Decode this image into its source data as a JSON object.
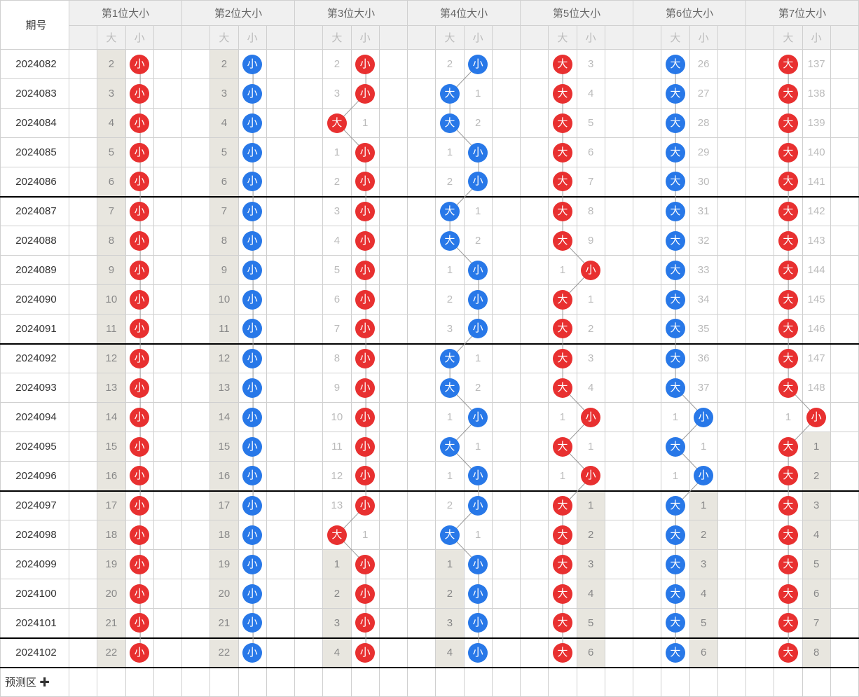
{
  "header": {
    "period_label": "期号",
    "positions": [
      "第1位大小",
      "第2位大小",
      "第3位大小",
      "第4位大小",
      "第5位大小",
      "第6位大小",
      "第7位大小"
    ],
    "sub": [
      "大",
      "小"
    ]
  },
  "predict_label": "预测区 ✚",
  "colors": {
    "red": "#e83030",
    "blue": "#2878e8",
    "hit_bg": "#e8e6df",
    "border": "#d0d0d0"
  },
  "rows": [
    {
      "period": "2024082",
      "cells": [
        {
          "da": 2,
          "xiao": "小",
          "hit": "xiao",
          "color": "red"
        },
        {
          "da": 2,
          "xiao": "小",
          "hit": "xiao",
          "color": "blue"
        },
        {
          "da": 2,
          "xiao": "小",
          "hit": "xiao",
          "color": "red"
        },
        {
          "da": 2,
          "xiao": "小",
          "hit": "xiao",
          "color": "blue"
        },
        {
          "da": "大",
          "xiao": 3,
          "hit": "da",
          "color": "red"
        },
        {
          "da": "大",
          "xiao": 26,
          "hit": "da",
          "color": "blue"
        },
        {
          "da": "大",
          "xiao": 137,
          "hit": "da",
          "color": "red"
        }
      ]
    },
    {
      "period": "2024083",
      "cells": [
        {
          "da": 3,
          "xiao": "小",
          "hit": "xiao",
          "color": "red"
        },
        {
          "da": 3,
          "xiao": "小",
          "hit": "xiao",
          "color": "blue"
        },
        {
          "da": 3,
          "xiao": "小",
          "hit": "xiao",
          "color": "red"
        },
        {
          "da": "大",
          "xiao": 1,
          "hit": "da",
          "color": "blue"
        },
        {
          "da": "大",
          "xiao": 4,
          "hit": "da",
          "color": "red"
        },
        {
          "da": "大",
          "xiao": 27,
          "hit": "da",
          "color": "blue"
        },
        {
          "da": "大",
          "xiao": 138,
          "hit": "da",
          "color": "red"
        }
      ]
    },
    {
      "period": "2024084",
      "cells": [
        {
          "da": 4,
          "xiao": "小",
          "hit": "xiao",
          "color": "red"
        },
        {
          "da": 4,
          "xiao": "小",
          "hit": "xiao",
          "color": "blue"
        },
        {
          "da": "大",
          "xiao": 1,
          "hit": "da",
          "color": "red"
        },
        {
          "da": "大",
          "xiao": 2,
          "hit": "da",
          "color": "blue"
        },
        {
          "da": "大",
          "xiao": 5,
          "hit": "da",
          "color": "red"
        },
        {
          "da": "大",
          "xiao": 28,
          "hit": "da",
          "color": "blue"
        },
        {
          "da": "大",
          "xiao": 139,
          "hit": "da",
          "color": "red"
        }
      ]
    },
    {
      "period": "2024085",
      "cells": [
        {
          "da": 5,
          "xiao": "小",
          "hit": "xiao",
          "color": "red"
        },
        {
          "da": 5,
          "xiao": "小",
          "hit": "xiao",
          "color": "blue"
        },
        {
          "da": 1,
          "xiao": "小",
          "hit": "xiao",
          "color": "red"
        },
        {
          "da": 1,
          "xiao": "小",
          "hit": "xiao",
          "color": "blue"
        },
        {
          "da": "大",
          "xiao": 6,
          "hit": "da",
          "color": "red"
        },
        {
          "da": "大",
          "xiao": 29,
          "hit": "da",
          "color": "blue"
        },
        {
          "da": "大",
          "xiao": 140,
          "hit": "da",
          "color": "red"
        }
      ]
    },
    {
      "period": "2024086",
      "cells": [
        {
          "da": 6,
          "xiao": "小",
          "hit": "xiao",
          "color": "red"
        },
        {
          "da": 6,
          "xiao": "小",
          "hit": "xiao",
          "color": "blue"
        },
        {
          "da": 2,
          "xiao": "小",
          "hit": "xiao",
          "color": "red"
        },
        {
          "da": 2,
          "xiao": "小",
          "hit": "xiao",
          "color": "blue"
        },
        {
          "da": "大",
          "xiao": 7,
          "hit": "da",
          "color": "red"
        },
        {
          "da": "大",
          "xiao": 30,
          "hit": "da",
          "color": "blue"
        },
        {
          "da": "大",
          "xiao": 141,
          "hit": "da",
          "color": "red"
        }
      ]
    },
    {
      "period": "2024087",
      "cells": [
        {
          "da": 7,
          "xiao": "小",
          "hit": "xiao",
          "color": "red"
        },
        {
          "da": 7,
          "xiao": "小",
          "hit": "xiao",
          "color": "blue"
        },
        {
          "da": 3,
          "xiao": "小",
          "hit": "xiao",
          "color": "red"
        },
        {
          "da": "大",
          "xiao": 1,
          "hit": "da",
          "color": "blue"
        },
        {
          "da": "大",
          "xiao": 8,
          "hit": "da",
          "color": "red"
        },
        {
          "da": "大",
          "xiao": 31,
          "hit": "da",
          "color": "blue"
        },
        {
          "da": "大",
          "xiao": 142,
          "hit": "da",
          "color": "red"
        }
      ]
    },
    {
      "period": "2024088",
      "cells": [
        {
          "da": 8,
          "xiao": "小",
          "hit": "xiao",
          "color": "red"
        },
        {
          "da": 8,
          "xiao": "小",
          "hit": "xiao",
          "color": "blue"
        },
        {
          "da": 4,
          "xiao": "小",
          "hit": "xiao",
          "color": "red"
        },
        {
          "da": "大",
          "xiao": 2,
          "hit": "da",
          "color": "blue"
        },
        {
          "da": "大",
          "xiao": 9,
          "hit": "da",
          "color": "red"
        },
        {
          "da": "大",
          "xiao": 32,
          "hit": "da",
          "color": "blue"
        },
        {
          "da": "大",
          "xiao": 143,
          "hit": "da",
          "color": "red"
        }
      ]
    },
    {
      "period": "2024089",
      "cells": [
        {
          "da": 9,
          "xiao": "小",
          "hit": "xiao",
          "color": "red"
        },
        {
          "da": 9,
          "xiao": "小",
          "hit": "xiao",
          "color": "blue"
        },
        {
          "da": 5,
          "xiao": "小",
          "hit": "xiao",
          "color": "red"
        },
        {
          "da": 1,
          "xiao": "小",
          "hit": "xiao",
          "color": "blue"
        },
        {
          "da": 1,
          "xiao": "小",
          "hit": "xiao",
          "color": "red"
        },
        {
          "da": "大",
          "xiao": 33,
          "hit": "da",
          "color": "blue"
        },
        {
          "da": "大",
          "xiao": 144,
          "hit": "da",
          "color": "red"
        }
      ]
    },
    {
      "period": "2024090",
      "cells": [
        {
          "da": 10,
          "xiao": "小",
          "hit": "xiao",
          "color": "red"
        },
        {
          "da": 10,
          "xiao": "小",
          "hit": "xiao",
          "color": "blue"
        },
        {
          "da": 6,
          "xiao": "小",
          "hit": "xiao",
          "color": "red"
        },
        {
          "da": 2,
          "xiao": "小",
          "hit": "xiao",
          "color": "blue"
        },
        {
          "da": "大",
          "xiao": 1,
          "hit": "da",
          "color": "red"
        },
        {
          "da": "大",
          "xiao": 34,
          "hit": "da",
          "color": "blue"
        },
        {
          "da": "大",
          "xiao": 145,
          "hit": "da",
          "color": "red"
        }
      ]
    },
    {
      "period": "2024091",
      "cells": [
        {
          "da": 11,
          "xiao": "小",
          "hit": "xiao",
          "color": "red"
        },
        {
          "da": 11,
          "xiao": "小",
          "hit": "xiao",
          "color": "blue"
        },
        {
          "da": 7,
          "xiao": "小",
          "hit": "xiao",
          "color": "red"
        },
        {
          "da": 3,
          "xiao": "小",
          "hit": "xiao",
          "color": "blue"
        },
        {
          "da": "大",
          "xiao": 2,
          "hit": "da",
          "color": "red"
        },
        {
          "da": "大",
          "xiao": 35,
          "hit": "da",
          "color": "blue"
        },
        {
          "da": "大",
          "xiao": 146,
          "hit": "da",
          "color": "red"
        }
      ]
    },
    {
      "period": "2024092",
      "cells": [
        {
          "da": 12,
          "xiao": "小",
          "hit": "xiao",
          "color": "red"
        },
        {
          "da": 12,
          "xiao": "小",
          "hit": "xiao",
          "color": "blue"
        },
        {
          "da": 8,
          "xiao": "小",
          "hit": "xiao",
          "color": "red"
        },
        {
          "da": "大",
          "xiao": 1,
          "hit": "da",
          "color": "blue"
        },
        {
          "da": "大",
          "xiao": 3,
          "hit": "da",
          "color": "red"
        },
        {
          "da": "大",
          "xiao": 36,
          "hit": "da",
          "color": "blue"
        },
        {
          "da": "大",
          "xiao": 147,
          "hit": "da",
          "color": "red"
        }
      ]
    },
    {
      "period": "2024093",
      "cells": [
        {
          "da": 13,
          "xiao": "小",
          "hit": "xiao",
          "color": "red"
        },
        {
          "da": 13,
          "xiao": "小",
          "hit": "xiao",
          "color": "blue"
        },
        {
          "da": 9,
          "xiao": "小",
          "hit": "xiao",
          "color": "red"
        },
        {
          "da": "大",
          "xiao": 2,
          "hit": "da",
          "color": "blue"
        },
        {
          "da": "大",
          "xiao": 4,
          "hit": "da",
          "color": "red"
        },
        {
          "da": "大",
          "xiao": 37,
          "hit": "da",
          "color": "blue"
        },
        {
          "da": "大",
          "xiao": 148,
          "hit": "da",
          "color": "red"
        }
      ]
    },
    {
      "period": "2024094",
      "cells": [
        {
          "da": 14,
          "xiao": "小",
          "hit": "xiao",
          "color": "red"
        },
        {
          "da": 14,
          "xiao": "小",
          "hit": "xiao",
          "color": "blue"
        },
        {
          "da": 10,
          "xiao": "小",
          "hit": "xiao",
          "color": "red"
        },
        {
          "da": 1,
          "xiao": "小",
          "hit": "xiao",
          "color": "blue"
        },
        {
          "da": 1,
          "xiao": "小",
          "hit": "xiao",
          "color": "red"
        },
        {
          "da": 1,
          "xiao": "小",
          "hit": "xiao",
          "color": "blue"
        },
        {
          "da": 1,
          "xiao": "小",
          "hit": "xiao",
          "color": "red"
        }
      ]
    },
    {
      "period": "2024095",
      "cells": [
        {
          "da": 15,
          "xiao": "小",
          "hit": "xiao",
          "color": "red"
        },
        {
          "da": 15,
          "xiao": "小",
          "hit": "xiao",
          "color": "blue"
        },
        {
          "da": 11,
          "xiao": "小",
          "hit": "xiao",
          "color": "red"
        },
        {
          "da": "大",
          "xiao": 1,
          "hit": "da",
          "color": "blue"
        },
        {
          "da": "大",
          "xiao": 1,
          "hit": "da",
          "color": "red"
        },
        {
          "da": "大",
          "xiao": 1,
          "hit": "da",
          "color": "blue"
        },
        {
          "da": "大",
          "xiao": 1,
          "hit": "da",
          "color": "red",
          "xiao_hit": true
        }
      ]
    },
    {
      "period": "2024096",
      "cells": [
        {
          "da": 16,
          "xiao": "小",
          "hit": "xiao",
          "color": "red"
        },
        {
          "da": 16,
          "xiao": "小",
          "hit": "xiao",
          "color": "blue"
        },
        {
          "da": 12,
          "xiao": "小",
          "hit": "xiao",
          "color": "red"
        },
        {
          "da": 1,
          "xiao": "小",
          "hit": "xiao",
          "color": "blue"
        },
        {
          "da": 1,
          "xiao": "小",
          "hit": "xiao",
          "color": "red"
        },
        {
          "da": 1,
          "xiao": "小",
          "hit": "xiao",
          "color": "blue"
        },
        {
          "da": "大",
          "xiao": 2,
          "hit": "da",
          "color": "red",
          "xiao_hit": true
        }
      ]
    },
    {
      "period": "2024097",
      "cells": [
        {
          "da": 17,
          "xiao": "小",
          "hit": "xiao",
          "color": "red"
        },
        {
          "da": 17,
          "xiao": "小",
          "hit": "xiao",
          "color": "blue"
        },
        {
          "da": 13,
          "xiao": "小",
          "hit": "xiao",
          "color": "red"
        },
        {
          "da": 2,
          "xiao": "小",
          "hit": "xiao",
          "color": "blue"
        },
        {
          "da": "大",
          "xiao": 1,
          "hit": "da",
          "color": "red",
          "xiao_hit": true
        },
        {
          "da": "大",
          "xiao": 1,
          "hit": "da",
          "color": "blue",
          "xiao_hit": true
        },
        {
          "da": "大",
          "xiao": 3,
          "hit": "da",
          "color": "red",
          "xiao_hit": true
        }
      ]
    },
    {
      "period": "2024098",
      "cells": [
        {
          "da": 18,
          "xiao": "小",
          "hit": "xiao",
          "color": "red"
        },
        {
          "da": 18,
          "xiao": "小",
          "hit": "xiao",
          "color": "blue"
        },
        {
          "da": "大",
          "xiao": 1,
          "hit": "da",
          "color": "red"
        },
        {
          "da": "大",
          "xiao": 1,
          "hit": "da",
          "color": "blue"
        },
        {
          "da": "大",
          "xiao": 2,
          "hit": "da",
          "color": "red",
          "xiao_hit": true
        },
        {
          "da": "大",
          "xiao": 2,
          "hit": "da",
          "color": "blue",
          "xiao_hit": true
        },
        {
          "da": "大",
          "xiao": 4,
          "hit": "da",
          "color": "red",
          "xiao_hit": true
        }
      ]
    },
    {
      "period": "2024099",
      "cells": [
        {
          "da": 19,
          "xiao": "小",
          "hit": "xiao",
          "color": "red"
        },
        {
          "da": 19,
          "xiao": "小",
          "hit": "xiao",
          "color": "blue"
        },
        {
          "da": 1,
          "xiao": "小",
          "hit": "xiao",
          "color": "red",
          "da_hit": true
        },
        {
          "da": 1,
          "xiao": "小",
          "hit": "xiao",
          "color": "blue",
          "da_hit": true
        },
        {
          "da": "大",
          "xiao": 3,
          "hit": "da",
          "color": "red",
          "xiao_hit": true
        },
        {
          "da": "大",
          "xiao": 3,
          "hit": "da",
          "color": "blue",
          "xiao_hit": true
        },
        {
          "da": "大",
          "xiao": 5,
          "hit": "da",
          "color": "red",
          "xiao_hit": true
        }
      ]
    },
    {
      "period": "2024100",
      "cells": [
        {
          "da": 20,
          "xiao": "小",
          "hit": "xiao",
          "color": "red"
        },
        {
          "da": 20,
          "xiao": "小",
          "hit": "xiao",
          "color": "blue"
        },
        {
          "da": 2,
          "xiao": "小",
          "hit": "xiao",
          "color": "red",
          "da_hit": true
        },
        {
          "da": 2,
          "xiao": "小",
          "hit": "xiao",
          "color": "blue",
          "da_hit": true
        },
        {
          "da": "大",
          "xiao": 4,
          "hit": "da",
          "color": "red",
          "xiao_hit": true
        },
        {
          "da": "大",
          "xiao": 4,
          "hit": "da",
          "color": "blue",
          "xiao_hit": true
        },
        {
          "da": "大",
          "xiao": 6,
          "hit": "da",
          "color": "red",
          "xiao_hit": true
        }
      ]
    },
    {
      "period": "2024101",
      "cells": [
        {
          "da": 21,
          "xiao": "小",
          "hit": "xiao",
          "color": "red"
        },
        {
          "da": 21,
          "xiao": "小",
          "hit": "xiao",
          "color": "blue"
        },
        {
          "da": 3,
          "xiao": "小",
          "hit": "xiao",
          "color": "red",
          "da_hit": true
        },
        {
          "da": 3,
          "xiao": "小",
          "hit": "xiao",
          "color": "blue",
          "da_hit": true
        },
        {
          "da": "大",
          "xiao": 5,
          "hit": "da",
          "color": "red",
          "xiao_hit": true
        },
        {
          "da": "大",
          "xiao": 5,
          "hit": "da",
          "color": "blue",
          "xiao_hit": true
        },
        {
          "da": "大",
          "xiao": 7,
          "hit": "da",
          "color": "red",
          "xiao_hit": true
        }
      ]
    },
    {
      "period": "2024102",
      "cells": [
        {
          "da": 22,
          "xiao": "小",
          "hit": "xiao",
          "color": "red"
        },
        {
          "da": 22,
          "xiao": "小",
          "hit": "xiao",
          "color": "blue"
        },
        {
          "da": 4,
          "xiao": "小",
          "hit": "xiao",
          "color": "red",
          "da_hit": true
        },
        {
          "da": 4,
          "xiao": "小",
          "hit": "xiao",
          "color": "blue",
          "da_hit": true
        },
        {
          "da": "大",
          "xiao": 6,
          "hit": "da",
          "color": "red",
          "xiao_hit": true
        },
        {
          "da": "大",
          "xiao": 6,
          "hit": "da",
          "color": "blue",
          "xiao_hit": true
        },
        {
          "da": "大",
          "xiao": 8,
          "hit": "da",
          "color": "red",
          "xiao_hit": true
        }
      ]
    }
  ]
}
